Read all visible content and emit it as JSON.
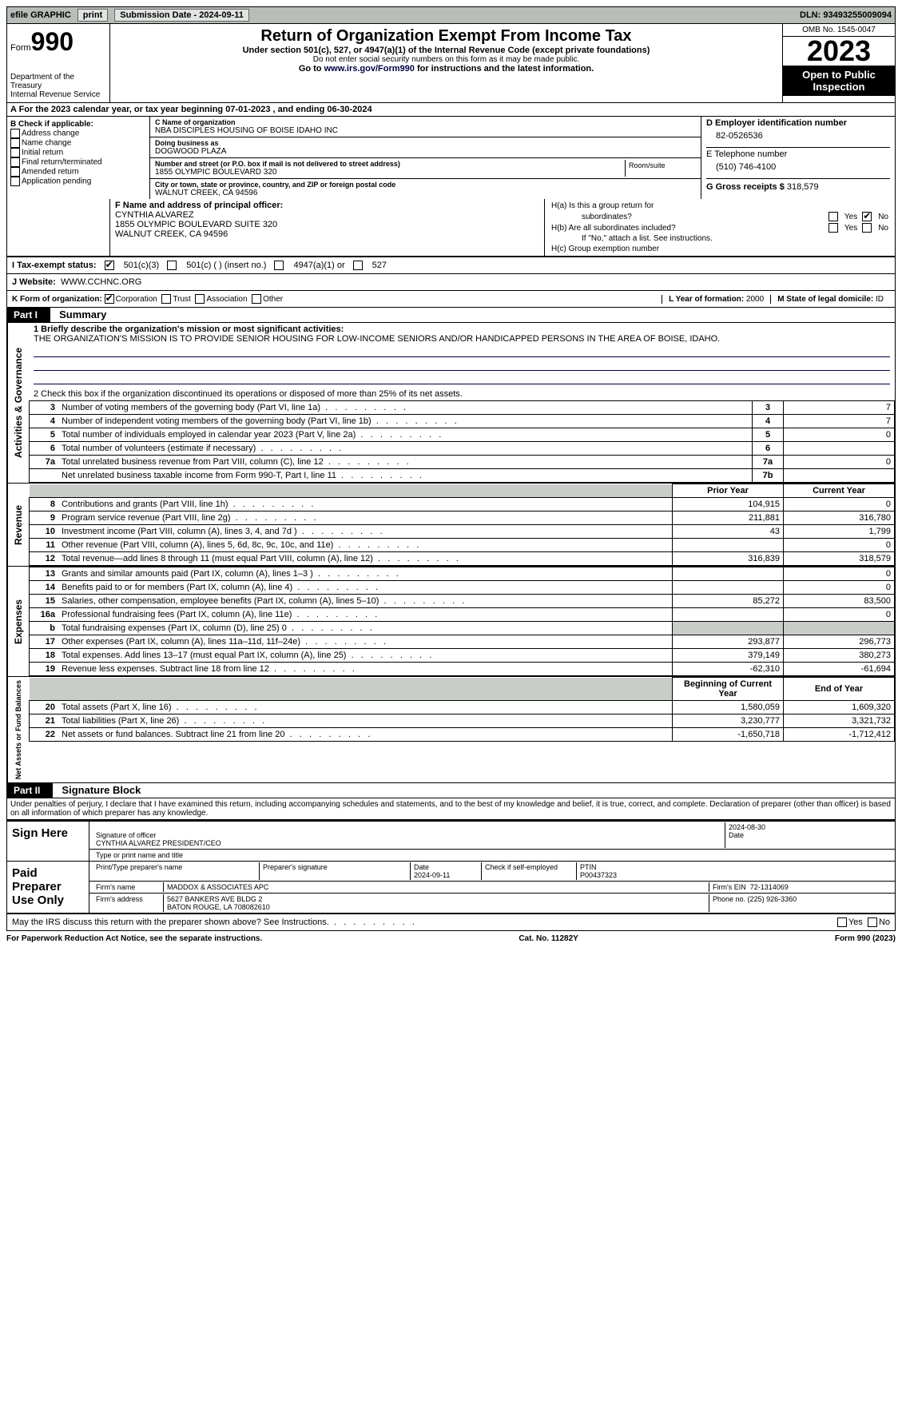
{
  "topbar": {
    "efile": "efile GRAPHIC",
    "print": "print",
    "subdate_label": "Submission Date - 2024-09-11",
    "dln": "DLN: 93493255009094"
  },
  "header": {
    "form_label": "Form",
    "form_num": "990",
    "dept": "Department of the Treasury",
    "irs": "Internal Revenue Service",
    "title": "Return of Organization Exempt From Income Tax",
    "sub1": "Under section 501(c), 527, or 4947(a)(1) of the Internal Revenue Code (except private foundations)",
    "sub2": "Do not enter social security numbers on this form as it may be made public.",
    "sub3_pre": "Go to ",
    "sub3_link": "www.irs.gov/Form990",
    "sub3_post": " for instructions and the latest information.",
    "omb": "OMB No. 1545-0047",
    "year": "2023",
    "open": "Open to Public Inspection"
  },
  "A": {
    "text": "A  For the 2023 calendar year, or tax year beginning 07-01-2023   , and ending 06-30-2024"
  },
  "B": {
    "label": "B Check if applicable:",
    "items": [
      "Address change",
      "Name change",
      "Initial return",
      "Final return/terminated",
      "Amended return",
      "Application pending"
    ]
  },
  "C": {
    "name_lbl": "C Name of organization",
    "name": "NBA DISCIPLES HOUSING OF BOISE IDAHO INC",
    "dba_lbl": "Doing business as",
    "dba": "DOGWOOD PLAZA",
    "addr_lbl": "Number and street (or P.O. box if mail is not delivered to street address)",
    "addr": "1855 OLYMPIC BOULEVARD 320",
    "room_lbl": "Room/suite",
    "city_lbl": "City or town, state or province, country, and ZIP or foreign postal code",
    "city": "WALNUT CREEK, CA  94596"
  },
  "D": {
    "lbl": "D Employer identification number",
    "val": "82-0526536"
  },
  "E": {
    "lbl": "E Telephone number",
    "val": "(510) 746-4100"
  },
  "G": {
    "lbl": "G Gross receipts $",
    "val": "318,579"
  },
  "F": {
    "lbl": "F  Name and address of principal officer:",
    "name": "CYNTHIA ALVAREZ",
    "addr1": "1855 OLYMPIC BOULEVARD SUITE 320",
    "addr2": "WALNUT CREEK, CA  94596"
  },
  "H": {
    "a": "H(a)  Is this a group return for",
    "a2": "subordinates?",
    "b": "H(b)  Are all subordinates included?",
    "b2": "If \"No,\" attach a list. See instructions.",
    "c": "H(c)  Group exemption number",
    "yes": "Yes",
    "no": "No"
  },
  "I": {
    "lbl": "I    Tax-exempt status:",
    "c3": "501(c)(3)",
    "c": "501(c) (  ) (insert no.)",
    "a1": "4947(a)(1) or",
    "s527": "527"
  },
  "J": {
    "lbl": "J    Website:",
    "val": "WWW.CCHNC.ORG"
  },
  "K": {
    "lbl": "K Form of organization:",
    "corp": "Corporation",
    "trust": "Trust",
    "assoc": "Association",
    "other": "Other"
  },
  "L": {
    "lbl": "L Year of formation:",
    "val": "2000"
  },
  "M": {
    "lbl": "M State of legal domicile:",
    "val": "ID"
  },
  "part1": {
    "hdr": "Part I",
    "title": "Summary"
  },
  "summary": {
    "q1_lbl": "1  Briefly describe the organization's mission or most significant activities:",
    "q1_val": "THE ORGANIZATION'S MISSION IS TO PROVIDE SENIOR HOUSING FOR LOW-INCOME SENIORS AND/OR HANDICAPPED PERSONS IN THE AREA OF BOISE, IDAHO.",
    "q2": "2   Check this box       if the organization discontinued its operations or disposed of more than 25% of its net assets.",
    "rows_gov": [
      {
        "n": "3",
        "d": "Number of voting members of the governing body (Part VI, line 1a)",
        "box": "3",
        "v": "7"
      },
      {
        "n": "4",
        "d": "Number of independent voting members of the governing body (Part VI, line 1b)",
        "box": "4",
        "v": "7"
      },
      {
        "n": "5",
        "d": "Total number of individuals employed in calendar year 2023 (Part V, line 2a)",
        "box": "5",
        "v": "0"
      },
      {
        "n": "6",
        "d": "Total number of volunteers (estimate if necessary)",
        "box": "6",
        "v": ""
      },
      {
        "n": "7a",
        "d": "Total unrelated business revenue from Part VIII, column (C), line 12",
        "box": "7a",
        "v": "0"
      },
      {
        "n": "",
        "d": "Net unrelated business taxable income from Form 990-T, Part I, line 11",
        "box": "7b",
        "v": ""
      }
    ],
    "col_prior": "Prior Year",
    "col_curr": "Current Year",
    "col_beg": "Beginning of Current Year",
    "col_end": "End of Year",
    "rev": [
      {
        "n": "8",
        "d": "Contributions and grants (Part VIII, line 1h)",
        "p": "104,915",
        "c": "0"
      },
      {
        "n": "9",
        "d": "Program service revenue (Part VIII, line 2g)",
        "p": "211,881",
        "c": "316,780"
      },
      {
        "n": "10",
        "d": "Investment income (Part VIII, column (A), lines 3, 4, and 7d )",
        "p": "43",
        "c": "1,799"
      },
      {
        "n": "11",
        "d": "Other revenue (Part VIII, column (A), lines 5, 6d, 8c, 9c, 10c, and 11e)",
        "p": "",
        "c": "0"
      },
      {
        "n": "12",
        "d": "Total revenue—add lines 8 through 11 (must equal Part VIII, column (A), line 12)",
        "p": "316,839",
        "c": "318,579"
      }
    ],
    "exp": [
      {
        "n": "13",
        "d": "Grants and similar amounts paid (Part IX, column (A), lines 1–3 )",
        "p": "",
        "c": "0"
      },
      {
        "n": "14",
        "d": "Benefits paid to or for members (Part IX, column (A), line 4)",
        "p": "",
        "c": "0"
      },
      {
        "n": "15",
        "d": "Salaries, other compensation, employee benefits (Part IX, column (A), lines 5–10)",
        "p": "85,272",
        "c": "83,500"
      },
      {
        "n": "16a",
        "d": "Professional fundraising fees (Part IX, column (A), line 11e)",
        "p": "",
        "c": "0"
      },
      {
        "n": "b",
        "d": "Total fundraising expenses (Part IX, column (D), line 25) 0",
        "p": "GREY",
        "c": "GREY"
      },
      {
        "n": "17",
        "d": "Other expenses (Part IX, column (A), lines 11a–11d, 11f–24e)",
        "p": "293,877",
        "c": "296,773"
      },
      {
        "n": "18",
        "d": "Total expenses. Add lines 13–17 (must equal Part IX, column (A), line 25)",
        "p": "379,149",
        "c": "380,273"
      },
      {
        "n": "19",
        "d": "Revenue less expenses. Subtract line 18 from line 12",
        "p": "-62,310",
        "c": "-61,694"
      }
    ],
    "net": [
      {
        "n": "20",
        "d": "Total assets (Part X, line 16)",
        "p": "1,580,059",
        "c": "1,609,320"
      },
      {
        "n": "21",
        "d": "Total liabilities (Part X, line 26)",
        "p": "3,230,777",
        "c": "3,321,732"
      },
      {
        "n": "22",
        "d": "Net assets or fund balances. Subtract line 21 from line 20",
        "p": "-1,650,718",
        "c": "-1,712,412"
      }
    ],
    "side_gov": "Activities & Governance",
    "side_rev": "Revenue",
    "side_exp": "Expenses",
    "side_net": "Net Assets or Fund Balances"
  },
  "part2": {
    "hdr": "Part II",
    "title": "Signature Block"
  },
  "sig": {
    "decl": "Under penalties of perjury, I declare that I have examined this return, including accompanying schedules and statements, and to the best of my knowledge and belief, it is true, correct, and complete. Declaration of preparer (other than officer) is based on all information of which preparer has any knowledge.",
    "sign_here": "Sign Here",
    "sig_officer_lbl": "Signature of officer",
    "officer": "CYNTHIA ALVAREZ  PRESIDENT/CEO",
    "type_lbl": "Type or print name and title",
    "date_lbl": "Date",
    "date": "2024-08-30",
    "paid": "Paid Preparer Use Only",
    "prep_name_lbl": "Print/Type preparer's name",
    "prep_sig_lbl": "Preparer's signature",
    "prep_date_lbl": "Date",
    "prep_date": "2024-09-11",
    "check_lbl": "Check        if self-employed",
    "ptin_lbl": "PTIN",
    "ptin": "P00437323",
    "firm_name_lbl": "Firm's name",
    "firm_name": "MADDOX & ASSOCIATES APC",
    "firm_ein_lbl": "Firm's EIN",
    "firm_ein": "72-1314069",
    "firm_addr_lbl": "Firm's address",
    "firm_addr1": "5627 BANKERS AVE BLDG 2",
    "firm_addr2": "BATON ROUGE, LA  708082610",
    "phone_lbl": "Phone no.",
    "phone": "(225) 926-3360",
    "discuss": "May the IRS discuss this return with the preparer shown above? See Instructions.",
    "yes": "Yes",
    "no": "No"
  },
  "footer": {
    "pra": "For Paperwork Reduction Act Notice, see the separate instructions.",
    "cat": "Cat. No. 11282Y",
    "form": "Form 990 (2023)"
  }
}
